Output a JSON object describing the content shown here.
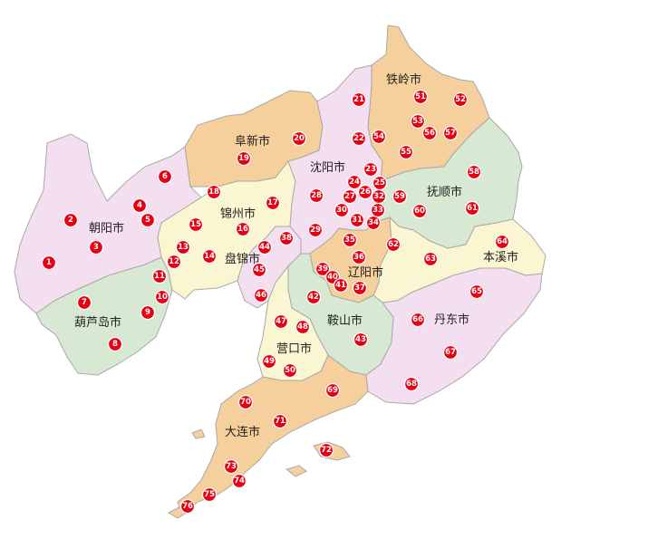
{
  "colors": {
    "pink": "#f4dff0",
    "orange": "#f5cf9c",
    "green": "#d7e8d3",
    "yellow": "#fbf6d2",
    "marker": "#e60012",
    "border": "#a9a9a9"
  },
  "cities": {
    "tieling": "铁岭市",
    "fuxin": "阜新市",
    "shenyang": "沈阳市",
    "fushun": "抚顺市",
    "chaoyang": "朝阳市",
    "jinzhou": "锦州市",
    "panjin": "盘锦市",
    "liaoyang": "辽阳市",
    "benxi": "本溪市",
    "huludao": "葫芦岛市",
    "anshan": "鞍山市",
    "dandong": "丹东市",
    "yingkou": "营口市",
    "dalian": "大连市"
  },
  "markers": [
    "1",
    "2",
    "3",
    "4",
    "5",
    "6",
    "7",
    "8",
    "9",
    "10",
    "11",
    "12",
    "13",
    "14",
    "15",
    "16",
    "17",
    "18",
    "19",
    "20",
    "21",
    "22",
    "23",
    "24",
    "25",
    "26",
    "27",
    "28",
    "29",
    "30",
    "31",
    "32",
    "33",
    "34",
    "35",
    "36",
    "37",
    "38",
    "39",
    "40",
    "41",
    "42",
    "43",
    "44",
    "45",
    "46",
    "47",
    "48",
    "49",
    "50",
    "51",
    "52",
    "53",
    "54",
    "55",
    "56",
    "57",
    "58",
    "59",
    "60",
    "61",
    "62",
    "63",
    "64",
    "65",
    "66",
    "67",
    "68",
    "69",
    "70",
    "71",
    "72",
    "73",
    "74",
    "75",
    "76"
  ]
}
